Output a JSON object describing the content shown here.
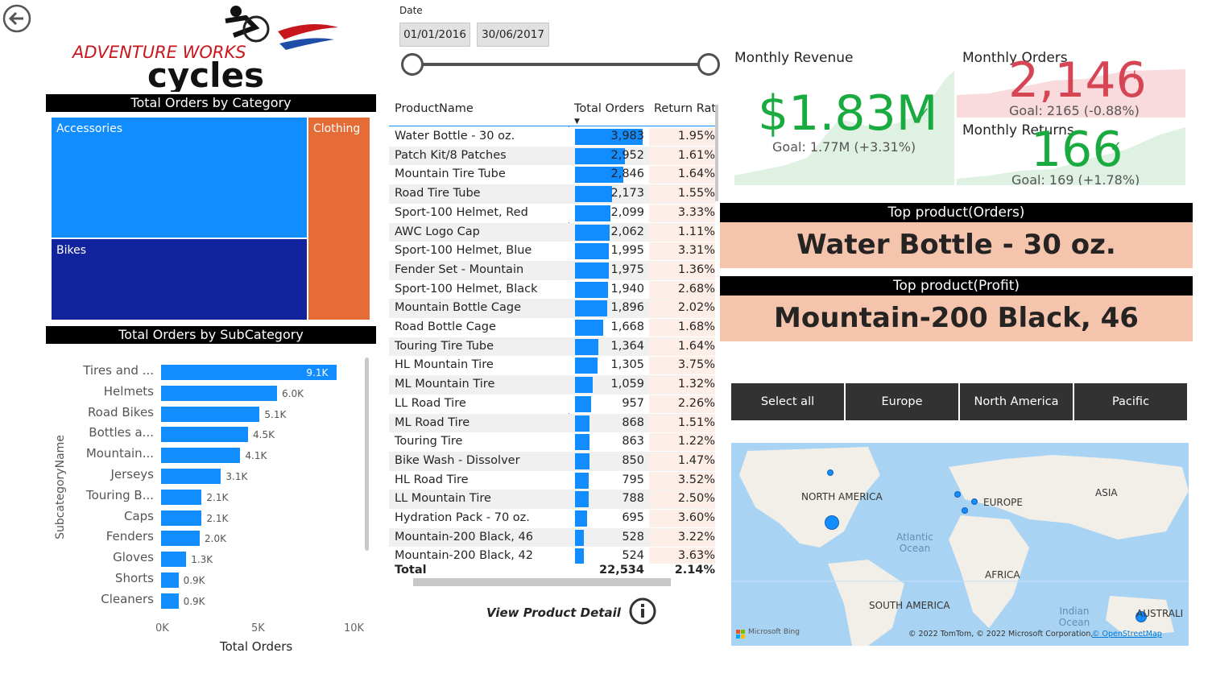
{
  "logo": {
    "line1": "ADVENTURE WORKS",
    "line2": "cycles"
  },
  "category": {
    "header": "Total Orders by Category",
    "cells": [
      {
        "label": "Accessories",
        "color": "#118DFF"
      },
      {
        "label": "Bikes",
        "color": "#12239E"
      },
      {
        "label": "Clothing",
        "color": "#E66C37"
      }
    ]
  },
  "subcategory": {
    "header": "Total Orders by SubCategory",
    "ylabel": "SubcategoryName",
    "xlabel": "Total Orders",
    "ticks": [
      "0K",
      "5K",
      "10K"
    ],
    "bar_color": "#118DFF"
  },
  "chart_data": {
    "type": "bar",
    "orientation": "horizontal",
    "title": "Total Orders by SubCategory",
    "xlabel": "Total Orders",
    "ylabel": "SubcategoryName",
    "xlim": [
      0,
      10000
    ],
    "categories": [
      "Tires and ...",
      "Helmets",
      "Road Bikes",
      "Bottles a...",
      "Mountain...",
      "Jerseys",
      "Touring B...",
      "Caps",
      "Fenders",
      "Gloves",
      "Shorts",
      "Cleaners"
    ],
    "values": [
      9100,
      6000,
      5100,
      4500,
      4100,
      3100,
      2100,
      2100,
      2000,
      1300,
      900,
      900
    ],
    "data_labels": [
      "9.1K",
      "6.0K",
      "5.1K",
      "4.5K",
      "4.1K",
      "3.1K",
      "2.1K",
      "2.1K",
      "2.0K",
      "1.3K",
      "0.9K",
      "0.9K"
    ]
  },
  "date_slicer": {
    "label": "Date",
    "start": "01/01/2016",
    "end": "30/06/2017"
  },
  "table": {
    "columns": [
      "ProductName",
      "Total Orders",
      "Return Rate"
    ],
    "max_orders": 3983,
    "rows": [
      {
        "name": "Water Bottle - 30 oz.",
        "orders": "3,983",
        "orders_num": 3983,
        "ret": "1.95%"
      },
      {
        "name": "Patch Kit/8 Patches",
        "orders": "2,952",
        "orders_num": 2952,
        "ret": "1.61%"
      },
      {
        "name": "Mountain Tire Tube",
        "orders": "2,846",
        "orders_num": 2846,
        "ret": "1.64%"
      },
      {
        "name": "Road Tire Tube",
        "orders": "2,173",
        "orders_num": 2173,
        "ret": "1.55%"
      },
      {
        "name": "Sport-100 Helmet, Red",
        "orders": "2,099",
        "orders_num": 2099,
        "ret": "3.33%"
      },
      {
        "name": "AWC Logo Cap",
        "orders": "2,062",
        "orders_num": 2062,
        "ret": "1.11%"
      },
      {
        "name": "Sport-100 Helmet, Blue",
        "orders": "1,995",
        "orders_num": 1995,
        "ret": "3.31%"
      },
      {
        "name": "Fender Set - Mountain",
        "orders": "1,975",
        "orders_num": 1975,
        "ret": "1.36%"
      },
      {
        "name": "Sport-100 Helmet, Black",
        "orders": "1,940",
        "orders_num": 1940,
        "ret": "2.68%"
      },
      {
        "name": "Mountain Bottle Cage",
        "orders": "1,896",
        "orders_num": 1896,
        "ret": "2.02%"
      },
      {
        "name": "Road Bottle Cage",
        "orders": "1,668",
        "orders_num": 1668,
        "ret": "1.68%"
      },
      {
        "name": "Touring Tire Tube",
        "orders": "1,364",
        "orders_num": 1364,
        "ret": "1.64%"
      },
      {
        "name": "HL Mountain Tire",
        "orders": "1,305",
        "orders_num": 1305,
        "ret": "3.75%"
      },
      {
        "name": "ML Mountain Tire",
        "orders": "1,059",
        "orders_num": 1059,
        "ret": "1.32%"
      },
      {
        "name": "LL Road Tire",
        "orders": "957",
        "orders_num": 957,
        "ret": "2.26%"
      },
      {
        "name": "ML Road Tire",
        "orders": "868",
        "orders_num": 868,
        "ret": "1.51%"
      },
      {
        "name": "Touring Tire",
        "orders": "863",
        "orders_num": 863,
        "ret": "1.22%"
      },
      {
        "name": "Bike Wash - Dissolver",
        "orders": "850",
        "orders_num": 850,
        "ret": "1.47%"
      },
      {
        "name": "HL Road Tire",
        "orders": "795",
        "orders_num": 795,
        "ret": "3.52%"
      },
      {
        "name": "LL Mountain Tire",
        "orders": "788",
        "orders_num": 788,
        "ret": "2.50%"
      },
      {
        "name": "Hydration Pack - 70 oz.",
        "orders": "695",
        "orders_num": 695,
        "ret": "3.60%"
      },
      {
        "name": "Mountain-200 Black, 46",
        "orders": "528",
        "orders_num": 528,
        "ret": "3.22%"
      },
      {
        "name": "Mountain-200 Black, 42",
        "orders": "524",
        "orders_num": 524,
        "ret": "3.63%"
      }
    ],
    "total_label": "Total",
    "total_orders": "22,534",
    "total_ret": "2.14%"
  },
  "view_detail": "View Product Detail",
  "kpi": {
    "revenue": {
      "title": "Monthly Revenue",
      "value": "$1.83M",
      "goal": "Goal: 1.77M (+3.31%)",
      "color": "#1AAB40"
    },
    "orders": {
      "title": "Monthly Orders",
      "value": "2,146",
      "goal": "Goal: 2165 (-0.88%)",
      "color": "#D64554"
    },
    "returns": {
      "title": "Monthly Returns",
      "value": "166",
      "goal": "Goal: 169 (+1.78%)",
      "color": "#1AAB40"
    }
  },
  "top_orders": {
    "header": "Top product(Orders)",
    "value": "Water Bottle - 30 oz."
  },
  "top_profit": {
    "header": "Top product(Profit)",
    "value": "Mountain-200 Black, 46"
  },
  "region_slicer": [
    "Select all",
    "Europe",
    "North America",
    "Pacific"
  ],
  "map": {
    "labels": [
      "NORTH AMERICA",
      "EUROPE",
      "ASIA",
      "AFRICA",
      "SOUTH AMERICA",
      "AUSTRALI"
    ],
    "ocean_atlantic": "Atlantic Ocean",
    "ocean_indian": "Indian Ocean",
    "brand": "Microsoft Bing",
    "copyright": "© 2022 TomTom, © 2022 Microsoft Corporation,",
    "osm": "© OpenStreetMap"
  }
}
